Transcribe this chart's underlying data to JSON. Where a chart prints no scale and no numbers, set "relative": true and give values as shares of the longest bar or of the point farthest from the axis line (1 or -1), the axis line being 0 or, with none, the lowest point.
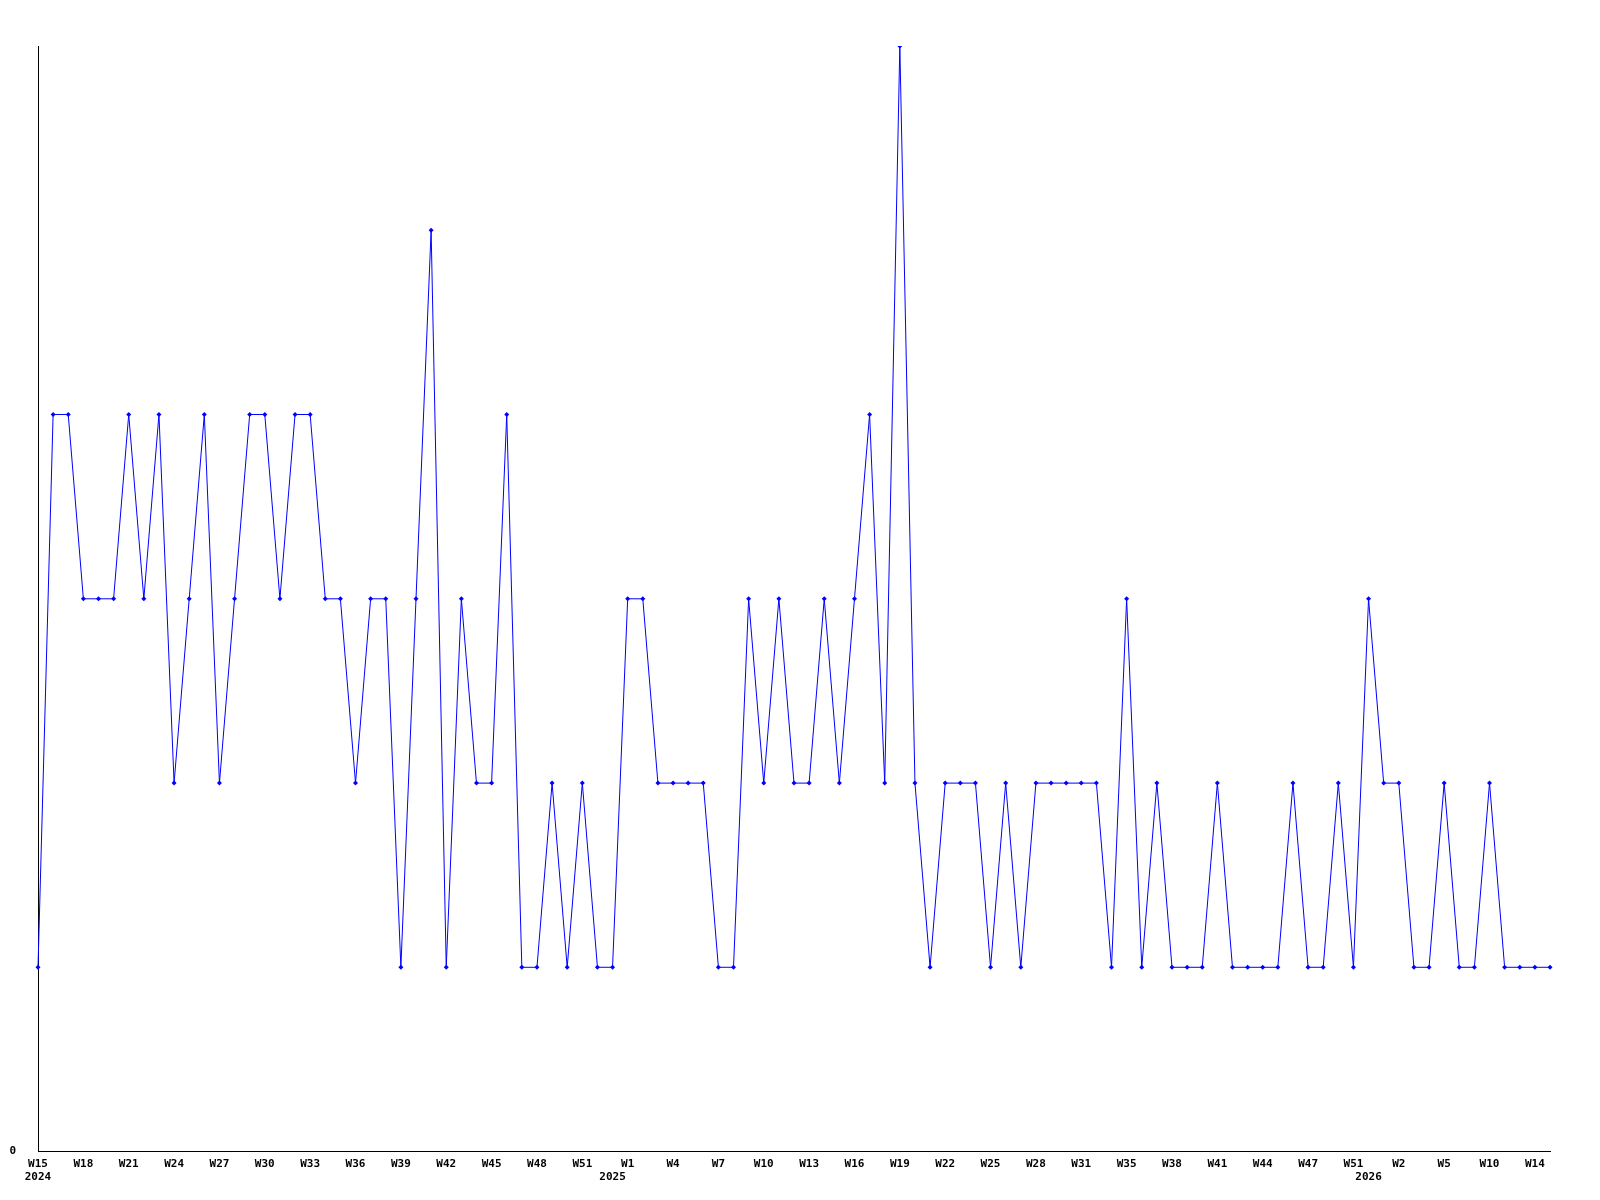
{
  "chart_data": {
    "type": "line",
    "relative": true,
    "marker": "diamond",
    "line_style": "solid",
    "grid": false,
    "legend": false,
    "categories": [
      "W15\n2024",
      null,
      null,
      "W18",
      null,
      null,
      "W21",
      null,
      null,
      "W24",
      null,
      null,
      "W27",
      null,
      null,
      "W30",
      null,
      null,
      "W33",
      null,
      null,
      "W36",
      null,
      null,
      "W39",
      null,
      null,
      "W42",
      null,
      null,
      "W45",
      null,
      null,
      "W48",
      null,
      null,
      "W51",
      null,
      "\n2025",
      "W1",
      null,
      null,
      "W4",
      null,
      null,
      "W7",
      null,
      null,
      "W10",
      null,
      null,
      "W13",
      null,
      null,
      "W16",
      null,
      null,
      "W19",
      null,
      null,
      "W22",
      null,
      null,
      "W25",
      null,
      null,
      "W28",
      null,
      null,
      "W31",
      null,
      null,
      "W35",
      null,
      null,
      "W38",
      null,
      null,
      "W41",
      null,
      null,
      "W44",
      null,
      null,
      "W47",
      null,
      null,
      "W51",
      "\n2026",
      null,
      "W2",
      null,
      null,
      "W5",
      null,
      null,
      "W10",
      null,
      null,
      "W14",
      null
    ],
    "series": [
      {
        "color": "#0000ff",
        "values": [
          0.1667,
          0.6667,
          0.6667,
          0.5,
          0.5,
          0.5,
          0.6667,
          0.5,
          0.6667,
          0.3333,
          0.5,
          0.6667,
          0.3333,
          0.5,
          0.6667,
          0.6667,
          0.5,
          0.6667,
          0.6667,
          0.5,
          0.5,
          0.3333,
          0.5,
          0.5,
          0.1667,
          0.5,
          0.8333,
          0.1667,
          0.5,
          0.3333,
          0.3333,
          0.6667,
          0.1667,
          0.1667,
          0.3333,
          0.1667,
          0.3333,
          0.1667,
          0.1667,
          0.5,
          0.5,
          0.3333,
          0.3333,
          0.3333,
          0.3333,
          0.1667,
          0.1667,
          0.5,
          0.3333,
          0.5,
          0.3333,
          0.3333,
          0.5,
          0.3333,
          0.5,
          0.6667,
          0.3333,
          1,
          0.3333,
          0.1667,
          0.3333,
          0.3333,
          0.3333,
          0.1667,
          0.3333,
          0.1667,
          0.3333,
          0.3333,
          0.3333,
          0.3333,
          0.3333,
          0.1667,
          0.5,
          0.1667,
          0.3333,
          0.1667,
          0.1667,
          0.1667,
          0.3333,
          0.1667,
          0.1667,
          0.1667,
          0.1667,
          0.3333,
          0.1667,
          0.1667,
          0.3333,
          0.1667,
          0.5,
          0.3333,
          0.3333,
          0.1667,
          0.1667,
          0.3333,
          0.1667,
          0.1667,
          0.3333,
          0.1667,
          0.1667,
          0.1667,
          0.1667
        ]
      }
    ],
    "annotations": [
      "0"
    ]
  }
}
